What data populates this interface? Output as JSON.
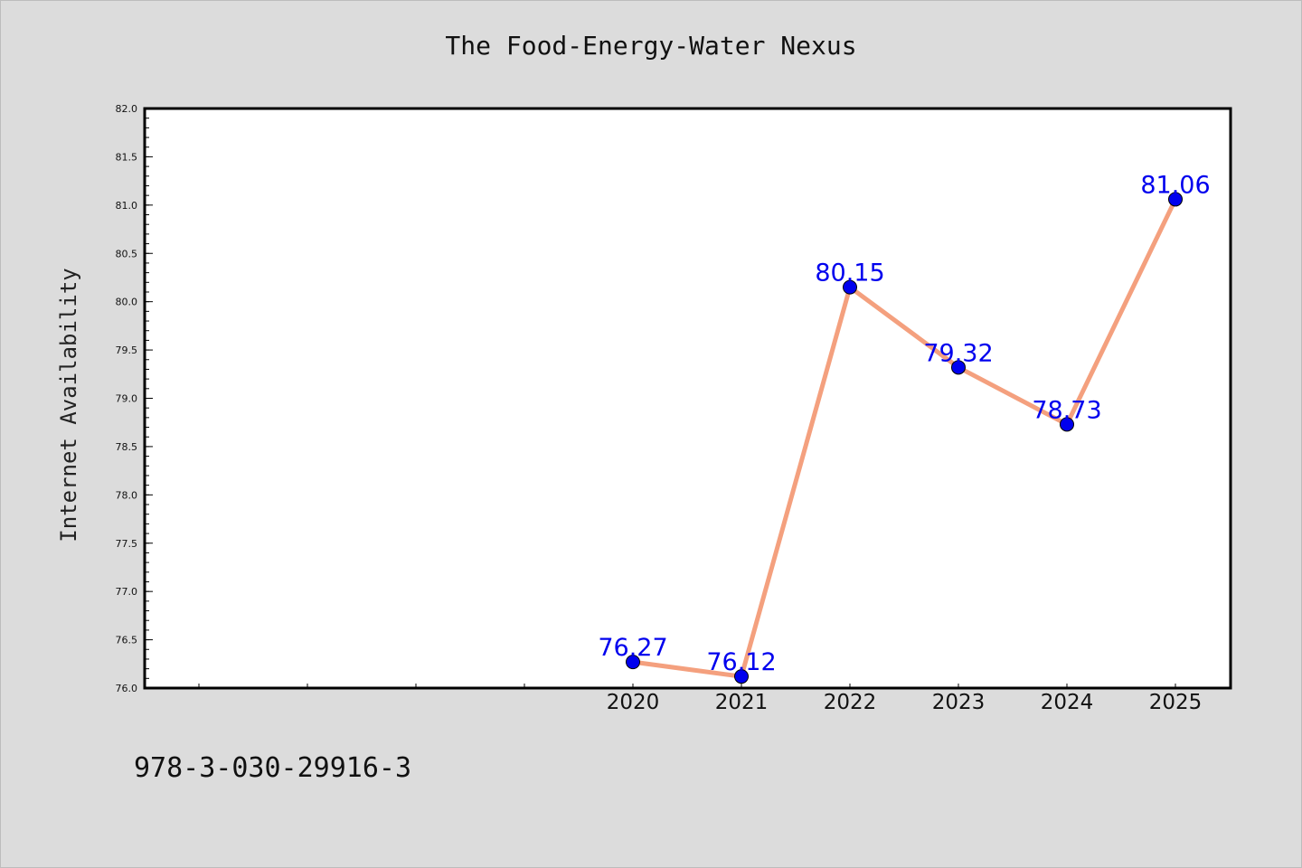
{
  "chart_data": {
    "type": "line",
    "title": "The Food-Energy-Water Nexus",
    "ylabel": "Internet Availability",
    "xlabel": "",
    "x": [
      "2020",
      "2021",
      "2022",
      "2023",
      "2024",
      "2025"
    ],
    "series": [
      {
        "values": [
          76.27,
          76.12,
          80.15,
          79.32,
          78.73,
          81.06
        ],
        "line_color": "#f4a07e",
        "marker_color": "#0000ee"
      }
    ],
    "data_labels": [
      "76.27",
      "76.12",
      "80.15",
      "79.32",
      "78.73",
      "81.06"
    ],
    "ylim": [
      76.0,
      82.0
    ],
    "yticks": [
      "76.0",
      "76.5",
      "77.0",
      "77.5",
      "78.0",
      "78.5",
      "79.0",
      "79.5",
      "80.0",
      "80.5",
      "81.0",
      "81.5",
      "82.0"
    ],
    "grid": false,
    "legend": "none"
  },
  "footer": {
    "isbn": "978-3-030-29916-3"
  },
  "colors": {
    "background": "#dcdcdc",
    "plot_background": "#ffffff",
    "data_label": "#0000ee"
  }
}
